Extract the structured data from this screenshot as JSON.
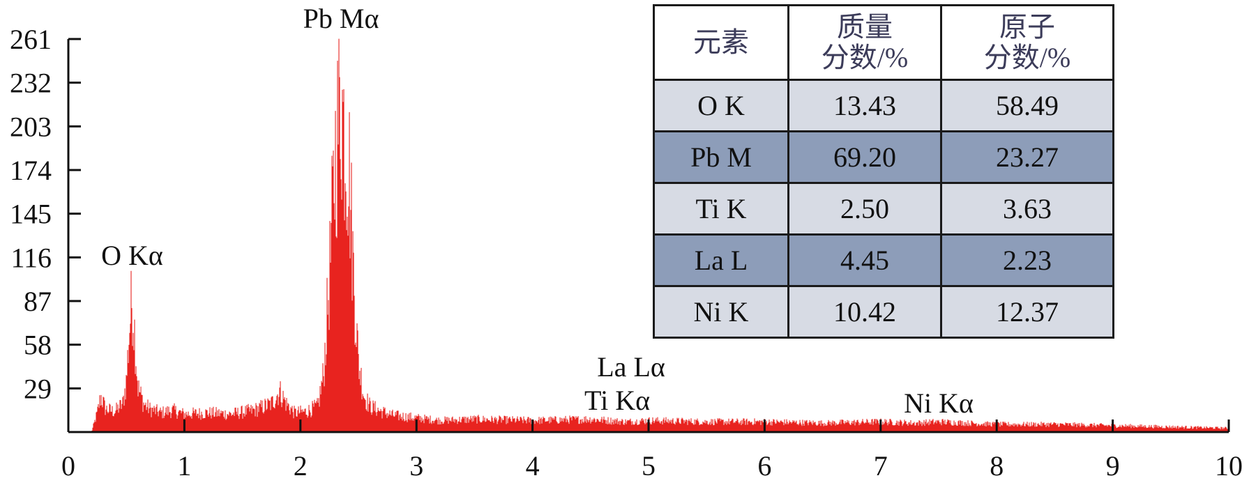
{
  "colors": {
    "spectrum": "#e8231f",
    "axis": "#111111",
    "row_light": "#d7dbe4",
    "row_dark": "#8d9db9"
  },
  "chart_data": {
    "type": "area",
    "xlim": [
      0,
      10
    ],
    "ylim": [
      0,
      261
    ],
    "x_ticks": [
      "0",
      "1",
      "2",
      "3",
      "4",
      "5",
      "6",
      "7",
      "8",
      "9",
      "10"
    ],
    "y_ticks": [
      "29",
      "58",
      "87",
      "116",
      "145",
      "174",
      "203",
      "232",
      "261"
    ],
    "series": [
      {
        "points": [
          [
            0.2,
            0
          ],
          [
            0.25,
            15
          ],
          [
            0.28,
            28
          ],
          [
            0.32,
            18
          ],
          [
            0.4,
            16
          ],
          [
            0.47,
            22
          ],
          [
            0.5,
            40
          ],
          [
            0.53,
            85
          ],
          [
            0.55,
            105
          ],
          [
            0.57,
            80
          ],
          [
            0.6,
            35
          ],
          [
            0.65,
            22
          ],
          [
            0.7,
            18
          ],
          [
            0.8,
            15
          ],
          [
            0.9,
            17
          ],
          [
            1.0,
            14
          ],
          [
            1.2,
            15
          ],
          [
            1.4,
            14
          ],
          [
            1.6,
            17
          ],
          [
            1.75,
            22
          ],
          [
            1.82,
            32
          ],
          [
            1.88,
            22
          ],
          [
            1.95,
            15
          ],
          [
            2.05,
            16
          ],
          [
            2.15,
            20
          ],
          [
            2.2,
            45
          ],
          [
            2.25,
            120
          ],
          [
            2.3,
            215
          ],
          [
            2.35,
            262
          ],
          [
            2.38,
            235
          ],
          [
            2.42,
            205
          ],
          [
            2.46,
            120
          ],
          [
            2.5,
            55
          ],
          [
            2.55,
            28
          ],
          [
            2.6,
            20
          ],
          [
            2.7,
            16
          ],
          [
            2.8,
            13
          ],
          [
            3.0,
            11
          ],
          [
            3.2,
            9
          ],
          [
            3.5,
            10
          ],
          [
            4.0,
            9
          ],
          [
            4.5,
            10
          ],
          [
            4.8,
            8
          ],
          [
            5.0,
            9
          ],
          [
            5.5,
            8
          ],
          [
            6.0,
            8
          ],
          [
            6.5,
            7
          ],
          [
            7.0,
            8
          ],
          [
            7.3,
            7
          ],
          [
            7.5,
            8
          ],
          [
            8.0,
            6
          ],
          [
            8.5,
            6
          ],
          [
            9.0,
            5
          ],
          [
            9.5,
            4
          ],
          [
            10.0,
            3
          ]
        ]
      }
    ],
    "annotations": [
      {
        "text": "O Kα",
        "x": 0.55
      },
      {
        "text": "Pb Mα",
        "x": 2.35
      },
      {
        "text": "La Lα",
        "x": 4.85
      },
      {
        "text": "Ti Kα",
        "x": 4.85
      },
      {
        "text": "Ni Kα",
        "x": 7.5
      }
    ]
  },
  "table": {
    "headers": [
      {
        "line1": "元素",
        "line2": ""
      },
      {
        "line1": "质量",
        "line2": "分数/%"
      },
      {
        "line1": "原子",
        "line2": "分数/%"
      }
    ],
    "rows": [
      {
        "element": "O K",
        "mass": "13.43",
        "atomic": "58.49"
      },
      {
        "element": "Pb M",
        "mass": "69.20",
        "atomic": "23.27"
      },
      {
        "element": "Ti K",
        "mass": "2.50",
        "atomic": "3.63"
      },
      {
        "element": "La L",
        "mass": "4.45",
        "atomic": "2.23"
      },
      {
        "element": "Ni K",
        "mass": "10.42",
        "atomic": "12.37"
      }
    ]
  }
}
